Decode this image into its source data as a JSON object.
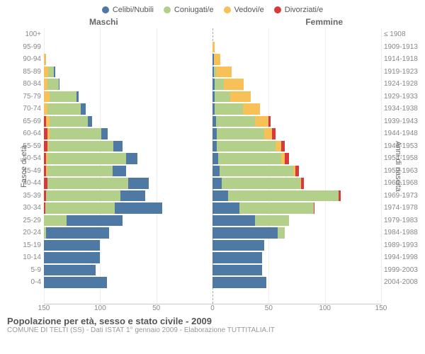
{
  "legend": [
    {
      "label": "Celibi/Nubili",
      "color": "#4f79a5"
    },
    {
      "label": "Coniugati/e",
      "color": "#b3d08a"
    },
    {
      "label": "Vedovi/e",
      "color": "#f7c158"
    },
    {
      "label": "Divorziati/e",
      "color": "#d73a3a"
    }
  ],
  "gender_labels": {
    "male": "Maschi",
    "female": "Femmine"
  },
  "y_axis_title_left": "Fasce di età",
  "y_axis_title_right": "Anni di nascita",
  "x_axis": {
    "max": 150,
    "ticks": [
      150,
      100,
      50,
      0,
      50,
      100,
      150
    ]
  },
  "colors": {
    "single": "#4f79a5",
    "married": "#b3d08a",
    "widowed": "#f7c158",
    "divorced": "#d73a3a",
    "grid": "#eeeeee",
    "center": "#aaaaaa",
    "text_muted": "#888888"
  },
  "age_bands": [
    {
      "label": "100+",
      "birth": "≤ 1908",
      "m": {
        "s": 0,
        "c": 0,
        "w": 0,
        "d": 0
      },
      "f": {
        "s": 0,
        "c": 0,
        "w": 0,
        "d": 0
      }
    },
    {
      "label": "95-99",
      "birth": "1909-1913",
      "m": {
        "s": 0,
        "c": 0,
        "w": 0,
        "d": 0
      },
      "f": {
        "s": 0,
        "c": 0,
        "w": 2,
        "d": 0
      }
    },
    {
      "label": "90-94",
      "birth": "1914-1918",
      "m": {
        "s": 0,
        "c": 1,
        "w": 1,
        "d": 0
      },
      "f": {
        "s": 1,
        "c": 0,
        "w": 6,
        "d": 0
      }
    },
    {
      "label": "85-89",
      "birth": "1919-1923",
      "m": {
        "s": 1,
        "c": 5,
        "w": 4,
        "d": 0
      },
      "f": {
        "s": 1,
        "c": 2,
        "w": 14,
        "d": 0
      }
    },
    {
      "label": "80-84",
      "birth": "1924-1928",
      "m": {
        "s": 1,
        "c": 10,
        "w": 3,
        "d": 0
      },
      "f": {
        "s": 2,
        "c": 8,
        "w": 18,
        "d": 0
      }
    },
    {
      "label": "75-79",
      "birth": "1929-1933",
      "m": {
        "s": 2,
        "c": 24,
        "w": 5,
        "d": 0
      },
      "f": {
        "s": 2,
        "c": 14,
        "w": 18,
        "d": 0
      }
    },
    {
      "label": "70-74",
      "birth": "1934-1938",
      "m": {
        "s": 4,
        "c": 30,
        "w": 3,
        "d": 0
      },
      "f": {
        "s": 2,
        "c": 25,
        "w": 15,
        "d": 0
      }
    },
    {
      "label": "65-69",
      "birth": "1939-1943",
      "m": {
        "s": 4,
        "c": 34,
        "w": 3,
        "d": 2
      },
      "f": {
        "s": 3,
        "c": 35,
        "w": 12,
        "d": 2
      }
    },
    {
      "label": "60-64",
      "birth": "1944-1948",
      "m": {
        "s": 6,
        "c": 46,
        "w": 2,
        "d": 3
      },
      "f": {
        "s": 4,
        "c": 42,
        "w": 7,
        "d": 3
      }
    },
    {
      "label": "55-59",
      "birth": "1949-1953",
      "m": {
        "s": 8,
        "c": 58,
        "w": 1,
        "d": 3
      },
      "f": {
        "s": 4,
        "c": 52,
        "w": 5,
        "d": 3
      }
    },
    {
      "label": "50-54",
      "birth": "1954-1958",
      "m": {
        "s": 10,
        "c": 70,
        "w": 1,
        "d": 2
      },
      "f": {
        "s": 5,
        "c": 56,
        "w": 3,
        "d": 4
      }
    },
    {
      "label": "45-49",
      "birth": "1959-1963",
      "m": {
        "s": 12,
        "c": 58,
        "w": 1,
        "d": 2
      },
      "f": {
        "s": 6,
        "c": 66,
        "w": 2,
        "d": 3
      }
    },
    {
      "label": "40-44",
      "birth": "1964-1968",
      "m": {
        "s": 18,
        "c": 72,
        "w": 0,
        "d": 3
      },
      "f": {
        "s": 8,
        "c": 70,
        "w": 1,
        "d": 2
      }
    },
    {
      "label": "35-39",
      "birth": "1969-1973",
      "m": {
        "s": 22,
        "c": 66,
        "w": 0,
        "d": 2
      },
      "f": {
        "s": 14,
        "c": 98,
        "w": 0,
        "d": 2
      }
    },
    {
      "label": "30-34",
      "birth": "1974-1978",
      "m": {
        "s": 42,
        "c": 62,
        "w": 0,
        "d": 1
      },
      "f": {
        "s": 24,
        "c": 66,
        "w": 0,
        "d": 1
      }
    },
    {
      "label": "25-29",
      "birth": "1979-1983",
      "m": {
        "s": 50,
        "c": 20,
        "w": 0,
        "d": 0
      },
      "f": {
        "s": 38,
        "c": 30,
        "w": 0,
        "d": 0
      }
    },
    {
      "label": "20-24",
      "birth": "1984-1988",
      "m": {
        "s": 56,
        "c": 2,
        "w": 0,
        "d": 0
      },
      "f": {
        "s": 58,
        "c": 6,
        "w": 0,
        "d": 0
      }
    },
    {
      "label": "15-19",
      "birth": "1989-1993",
      "m": {
        "s": 50,
        "c": 0,
        "w": 0,
        "d": 0
      },
      "f": {
        "s": 46,
        "c": 0,
        "w": 0,
        "d": 0
      }
    },
    {
      "label": "10-14",
      "birth": "1994-1998",
      "m": {
        "s": 50,
        "c": 0,
        "w": 0,
        "d": 0
      },
      "f": {
        "s": 44,
        "c": 0,
        "w": 0,
        "d": 0
      }
    },
    {
      "label": "5-9",
      "birth": "1999-2003",
      "m": {
        "s": 46,
        "c": 0,
        "w": 0,
        "d": 0
      },
      "f": {
        "s": 44,
        "c": 0,
        "w": 0,
        "d": 0
      }
    },
    {
      "label": "0-4",
      "birth": "2004-2008",
      "m": {
        "s": 56,
        "c": 0,
        "w": 0,
        "d": 0
      },
      "f": {
        "s": 48,
        "c": 0,
        "w": 0,
        "d": 0
      }
    }
  ],
  "footer": {
    "title": "Popolazione per età, sesso e stato civile - 2009",
    "subtitle": "COMUNE DI TELTI (SS) - Dati ISTAT 1° gennaio 2009 - Elaborazione TUTTITALIA.IT"
  }
}
